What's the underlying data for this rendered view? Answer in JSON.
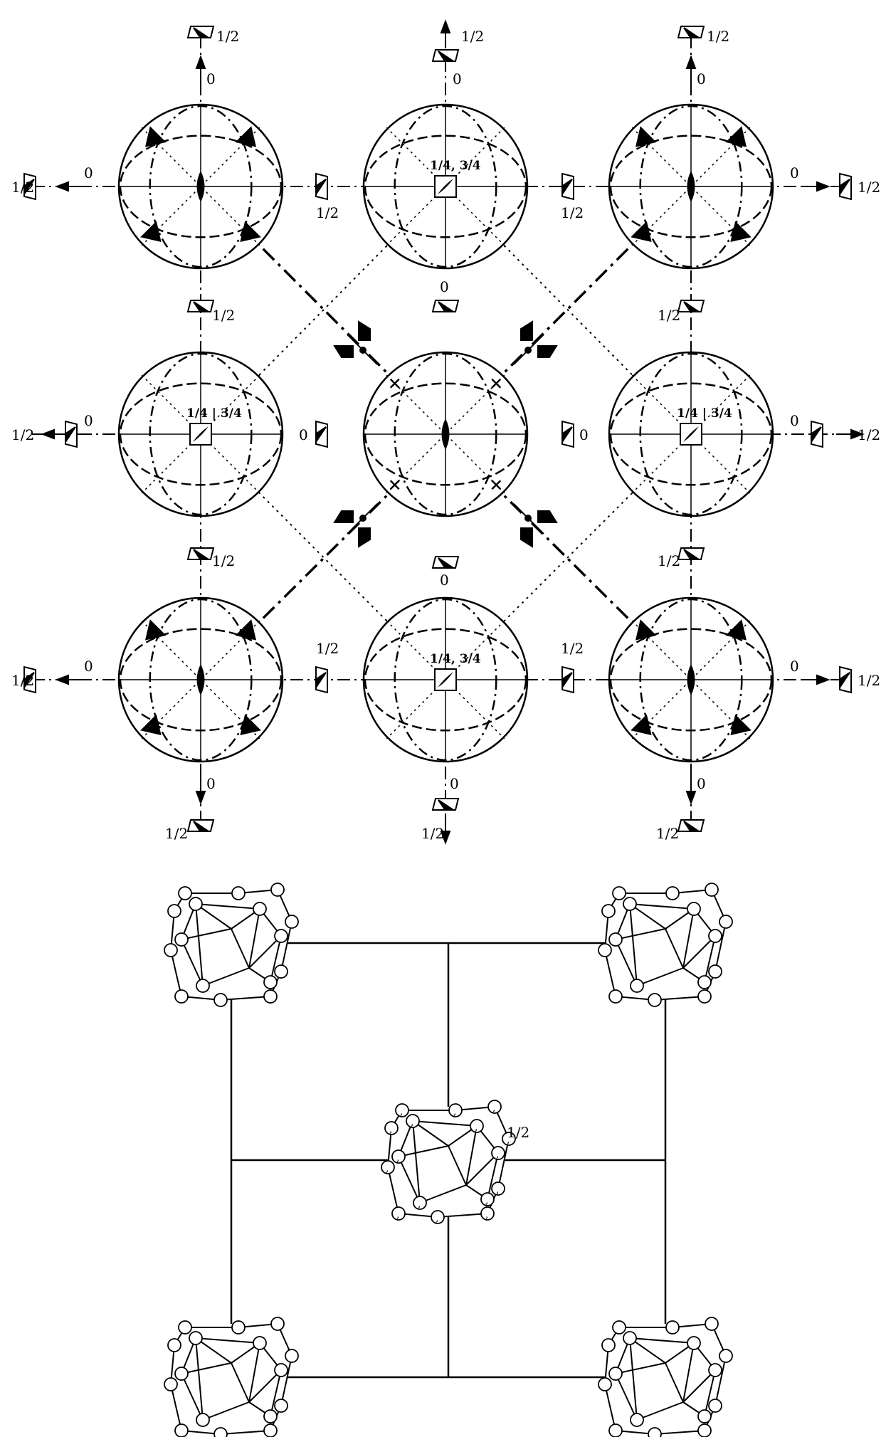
{
  "figure": {
    "top_panel": {
      "edge_labels": {
        "top": {
          "left_outer": "1/2",
          "left_inner": "0",
          "center_top": "1/2",
          "center_bottom": "0",
          "right_outer": "1/2",
          "right_inner": "0"
        },
        "bottom": {
          "left_inner": "0",
          "left_outer": "1/2",
          "center_top": "0",
          "center_bottom": "1/2",
          "right_inner": "0",
          "right_outer": "1/2"
        },
        "left": {
          "row1_outer": "1/2",
          "row1_inner": "0",
          "row2_outer": "1/2",
          "row2_inner": "0",
          "row3_outer": "1/2",
          "row3_inner": "0"
        },
        "right": {
          "row1_inner": "0",
          "row1_outer": "1/2",
          "row2_inner": "0",
          "row2_outer": "1/2",
          "row3_inner": "0",
          "row3_outer": "1/2"
        }
      },
      "inner_labels": {
        "between_row1_left": "1/2",
        "between_row1_right": "1/2",
        "between_row3_left": "1/2",
        "between_row3_right": "1/2",
        "between_col1_upper": "1/2",
        "between_col1_lower": "1/2",
        "between_col3_upper": "1/2",
        "between_col3_lower": "1/2",
        "center_upper": "0",
        "center_lower": "0",
        "center_left": "0",
        "center_right": "0",
        "fraction_pair": "1/4, 3/4",
        "fraction_split": "1/4 | 3/4"
      }
    },
    "bottom_panel": {
      "center_label": "1/2"
    }
  }
}
